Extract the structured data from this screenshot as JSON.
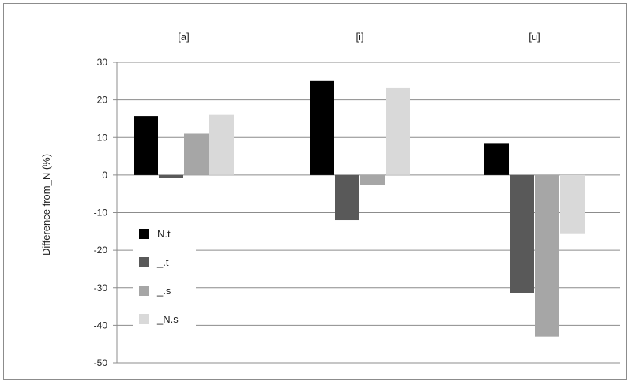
{
  "chart_data": {
    "type": "bar",
    "categories": [
      "[a]",
      "[i]",
      "[u]"
    ],
    "series": [
      {
        "name": "N.t",
        "color": "#000000",
        "values": [
          15.7,
          25.0,
          8.5
        ]
      },
      {
        "name": "_.t",
        "color": "#595959",
        "values": [
          -0.8,
          -12.0,
          -31.5
        ]
      },
      {
        "name": "_.s",
        "color": "#a6a6a6",
        "values": [
          11.0,
          -2.7,
          -43.0
        ]
      },
      {
        "name": "_N.s",
        "color": "#d9d9d9",
        "values": [
          16.0,
          23.3,
          -15.5
        ]
      }
    ],
    "title": "",
    "xlabel": "",
    "ylabel": "Difference from_N (%)",
    "ylim": [
      -50,
      30
    ],
    "yticks": [
      30,
      20,
      10,
      0,
      -10,
      -20,
      -30,
      -40,
      -50
    ],
    "grid": true,
    "legend_position": "left"
  }
}
